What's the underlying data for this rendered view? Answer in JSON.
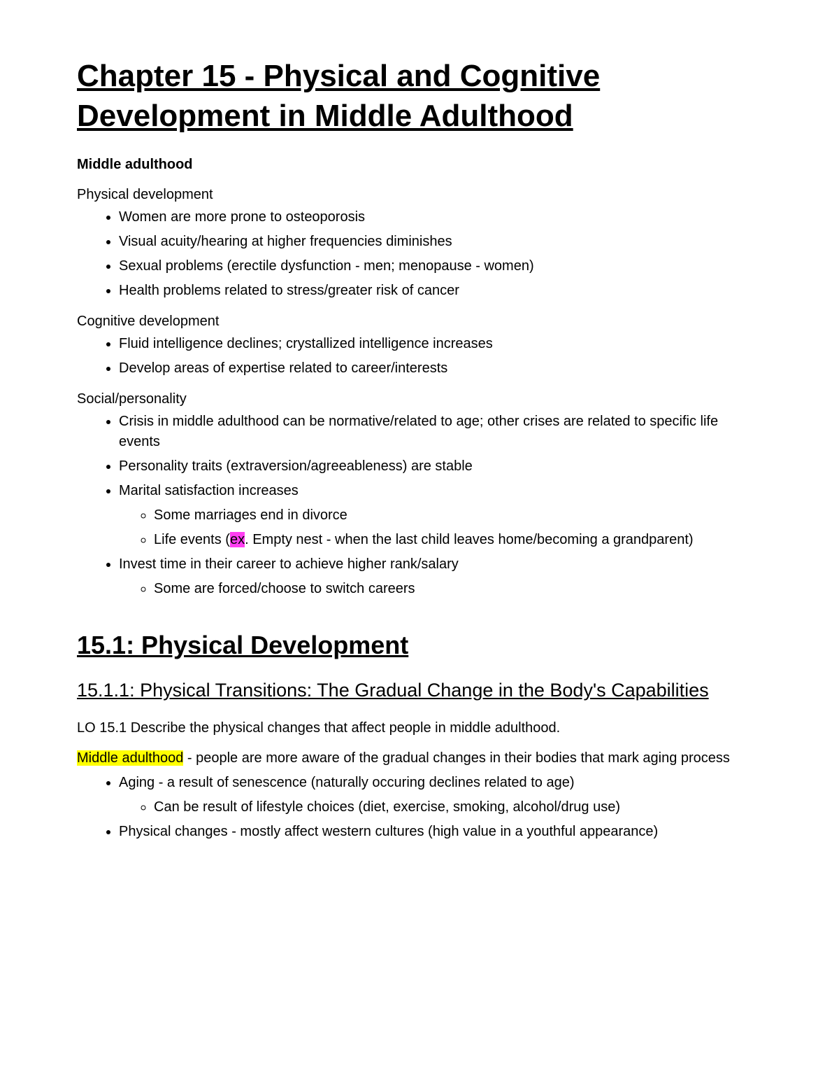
{
  "title": "Chapter 15 - Physical and Cognitive Development in Middle Adulthood",
  "subheading": "Middle adulthood",
  "sections": {
    "physical": {
      "label": "Physical development",
      "items": [
        "Women are more prone to osteoporosis",
        "Visual acuity/hearing at higher frequencies diminishes",
        "Sexual problems (erectile dysfunction - men; menopause - women)",
        "Health problems related to stress/greater risk of cancer"
      ]
    },
    "cognitive": {
      "label": "Cognitive development",
      "items": [
        "Fluid intelligence declines; crystallized intelligence increases",
        "Develop areas of expertise related to career/interests"
      ]
    },
    "social": {
      "label": "Social/personality",
      "item0": "Crisis in middle adulthood can be normative/related to age; other crises are related to specific life events",
      "item1": "Personality traits (extraversion/agreeableness) are stable",
      "item2": "Marital satisfaction increases",
      "item2sub0": "Some marriages end in divorce",
      "item2sub1_a": "Life events (",
      "item2sub1_hl": "ex",
      "item2sub1_b": ". Empty nest - when the last child leaves home/becoming a grandparent)",
      "item3": "Invest time in their career to achieve higher rank/salary",
      "item3sub0": "Some are forced/choose to switch careers"
    }
  },
  "h2_15_1": "15.1: Physical Development",
  "h3_15_1_1": "15.1.1: Physical Transitions: The Gradual Change in the Body's Capabilities",
  "lo_text": "LO 15.1 Describe the physical changes that affect people in middle adulthood.",
  "midadult_hl": "Middle adulthood",
  "midadult_rest": " - people are more aware of the gradual changes in their bodies that mark aging process",
  "aging_list": {
    "item0": "Aging - a result of senescence (naturally occuring declines related to age)",
    "item0sub0": "Can be result of lifestyle choices (diet, exercise, smoking, alcohol/drug use)",
    "item1": "Physical changes - mostly affect western cultures (high value in a youthful appearance)"
  },
  "colors": {
    "text": "#000000",
    "background": "#ffffff",
    "highlight_pink": "#ff3ef2",
    "highlight_yellow": "#ffff00"
  },
  "typography": {
    "title_fontsize": 44,
    "h2_fontsize": 36,
    "h3_fontsize": 27,
    "body_fontsize": 20,
    "font_family": "Arial"
  }
}
